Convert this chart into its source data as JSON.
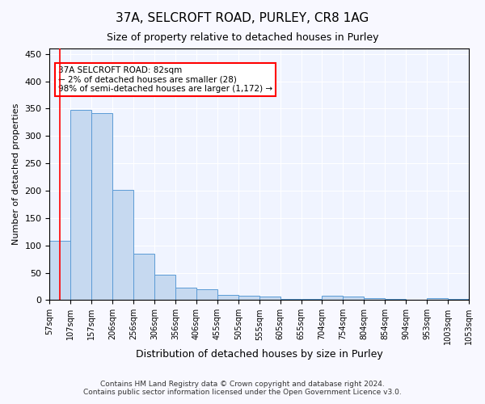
{
  "title": "37A, SELCROFT ROAD, PURLEY, CR8 1AG",
  "subtitle": "Size of property relative to detached houses in Purley",
  "xlabel": "Distribution of detached houses by size in Purley",
  "ylabel": "Number of detached properties",
  "bar_values": [
    108,
    348,
    342,
    202,
    84,
    46,
    22,
    20,
    10,
    8,
    6,
    2,
    2,
    8,
    6,
    3,
    2,
    0,
    3,
    2
  ],
  "bin_labels": [
    "57sqm",
    "107sqm",
    "157sqm",
    "206sqm",
    "256sqm",
    "306sqm",
    "356sqm",
    "406sqm",
    "455sqm",
    "505sqm",
    "555sqm",
    "605sqm",
    "655sqm",
    "704sqm",
    "754sqm",
    "804sqm",
    "854sqm",
    "904sqm",
    "953sqm",
    "1003sqm",
    "1053sqm"
  ],
  "bar_color": "#c6d9f0",
  "bar_edge_color": "#5b9bd5",
  "annotation_box_color": "#ff0000",
  "annotation_text": "37A SELCROFT ROAD: 82sqm\n← 2% of detached houses are smaller (28)\n98% of semi-detached houses are larger (1,172) →",
  "property_line_x": 0,
  "ylim": [
    0,
    460
  ],
  "yticks": [
    0,
    50,
    100,
    150,
    200,
    250,
    300,
    350,
    400,
    450
  ],
  "bg_color": "#f0f4ff",
  "grid_color": "#ffffff",
  "footer_line1": "Contains HM Land Registry data © Crown copyright and database right 2024.",
  "footer_line2": "Contains public sector information licensed under the Open Government Licence v3.0."
}
